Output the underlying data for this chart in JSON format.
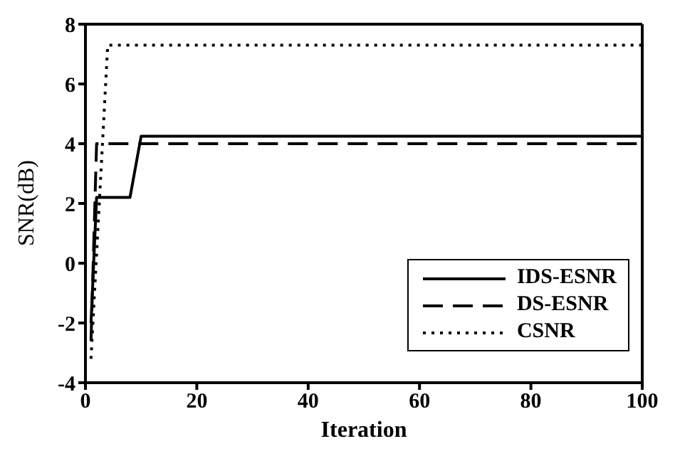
{
  "chart_data": {
    "type": "line",
    "xlabel": "Iteration",
    "ylabel": "SNR(dB)",
    "xlim": [
      0,
      100
    ],
    "ylim": [
      -4,
      8
    ],
    "xticks": [
      0,
      20,
      40,
      60,
      80,
      100
    ],
    "yticks": [
      -4,
      -2,
      0,
      2,
      4,
      6,
      8
    ],
    "grid": false,
    "legend": "bottom right",
    "marker": "none",
    "series": [
      {
        "name": "IDS-ESNR",
        "color": "#000000",
        "line_style": "solid",
        "x": [
          1,
          2,
          8,
          10,
          100
        ],
        "values": [
          -2,
          2.2,
          2.2,
          4.25,
          4.25
        ]
      },
      {
        "name": "DS-ESNR",
        "color": "#000000",
        "line_style": "dashed",
        "x": [
          1,
          2,
          100
        ],
        "values": [
          -2.6,
          4,
          4
        ]
      },
      {
        "name": "CSNR",
        "color": "#000000",
        "line_style": "dotted",
        "x": [
          1,
          4,
          100
        ],
        "values": [
          -3.2,
          7.3,
          7.3
        ]
      }
    ]
  }
}
